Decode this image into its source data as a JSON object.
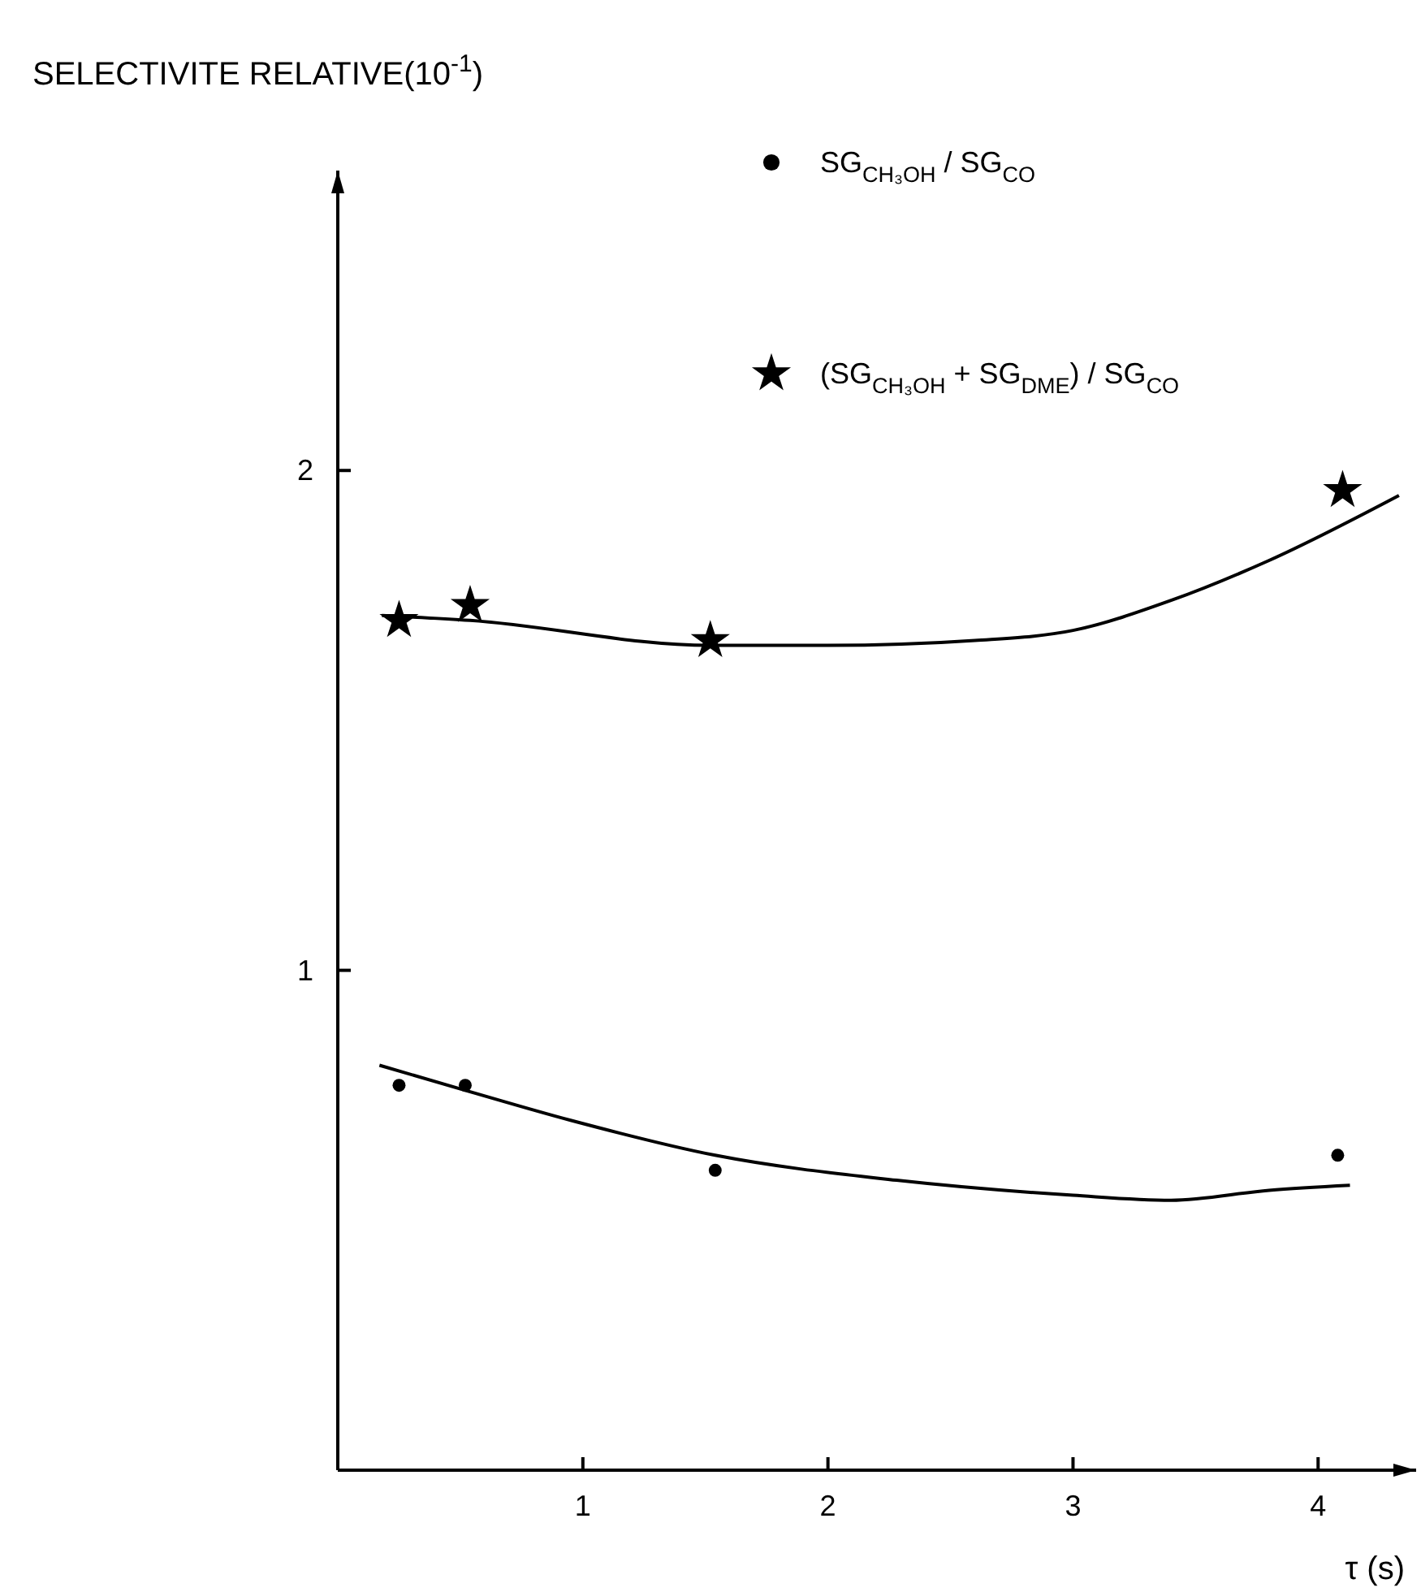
{
  "chart_data": {
    "type": "scatter",
    "ylabel": "SELECTIVITE RELATIVE(10$^{-1}$)",
    "xlabel": "τ (s)",
    "xlim": [
      0,
      4.4
    ],
    "ylim": [
      0,
      2.6
    ],
    "xticks": [
      1,
      2,
      3,
      4
    ],
    "yticks": [
      1,
      2
    ],
    "grid": false,
    "legend": "top right",
    "series": [
      {
        "name": "SG$_{CH₃OH}$ / SG$_{CO}$",
        "marker": "circle",
        "color": "#000000",
        "x": [
          0.25,
          0.52,
          1.54,
          4.08
        ],
        "values": [
          0.77,
          0.77,
          0.6,
          0.63
        ]
      },
      {
        "name": "(SG$_{CH₃OH}$ + SG$_{DME}$) / SG$_{CO}$",
        "marker": "star",
        "color": "#000000",
        "x": [
          0.25,
          0.54,
          1.52,
          4.1
        ],
        "values": [
          1.7,
          1.73,
          1.66,
          1.96
        ]
      },
      {
        "type": "line",
        "marker": "none",
        "color": "#000000",
        "x": [
          0.17,
          0.52,
          0.95,
          1.54,
          2.28,
          3,
          3.4,
          3.8,
          4.13
        ],
        "values": [
          0.81,
          0.76,
          0.7,
          0.63,
          0.58,
          0.55,
          0.54,
          0.56,
          0.57
        ]
      },
      {
        "type": "line",
        "marker": "none",
        "color": "#000000",
        "x": [
          0.18,
          0.54,
          1.52,
          2,
          2.6,
          3,
          3.4,
          3.8,
          4.33
        ],
        "values": [
          1.71,
          1.7,
          1.65,
          1.65,
          1.66,
          1.68,
          1.74,
          1.82,
          1.95
        ]
      }
    ]
  }
}
